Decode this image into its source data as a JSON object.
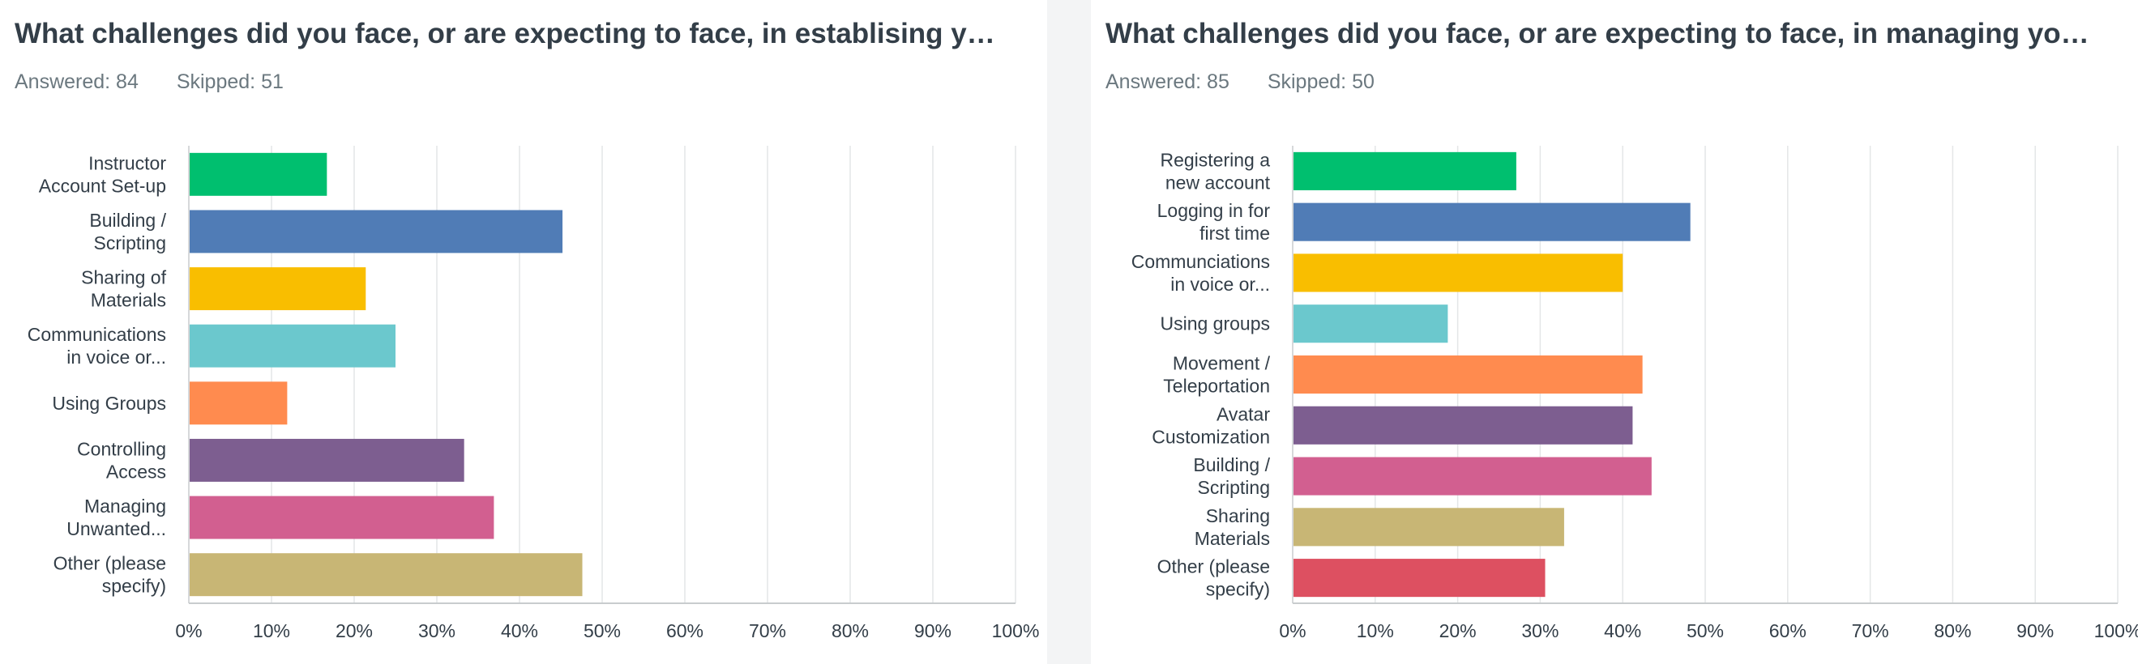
{
  "colors": [
    "#00bf6f",
    "#507cb6",
    "#f9be00",
    "#6bc8cd",
    "#ff8b4f",
    "#7d5e90",
    "#d25f90",
    "#c8b675",
    "#dd5061"
  ],
  "panels": [
    {
      "title": "What challenges did you face, or are expecting to face, in establising y…",
      "answered": "Answered: 84",
      "skipped": "Skipped: 51"
    },
    {
      "title": "What challenges did you face, or are expecting to face, in managing yo…",
      "answered": "Answered: 85",
      "skipped": "Skipped: 50"
    }
  ],
  "chart_data": [
    {
      "type": "bar",
      "orientation": "horizontal",
      "categories": [
        [
          "Instructor",
          "Account Set-up"
        ],
        [
          "Building /",
          "Scripting"
        ],
        [
          "Sharing of",
          "Materials"
        ],
        [
          "Communications",
          "in voice or..."
        ],
        [
          "Using Groups"
        ],
        [
          "Controlling",
          "Access"
        ],
        [
          "Managing",
          "Unwanted..."
        ],
        [
          "Other (please",
          "specify)"
        ]
      ],
      "values": [
        16.7,
        45.2,
        21.4,
        25.0,
        11.9,
        33.3,
        36.9,
        47.6
      ],
      "xlim": [
        0,
        100
      ],
      "xticks": [
        "0%",
        "10%",
        "20%",
        "30%",
        "40%",
        "50%",
        "60%",
        "70%",
        "80%",
        "90%",
        "100%"
      ],
      "grid": true
    },
    {
      "type": "bar",
      "orientation": "horizontal",
      "categories": [
        [
          "Registering a",
          "new account"
        ],
        [
          "Logging in for",
          "first time"
        ],
        [
          "Communciations",
          "in voice or..."
        ],
        [
          "Using groups"
        ],
        [
          "Movement /",
          "Teleportation"
        ],
        [
          "Avatar",
          "Customization"
        ],
        [
          "Building /",
          "Scripting"
        ],
        [
          "Sharing",
          "Materials"
        ],
        [
          "Other (please",
          "specify)"
        ]
      ],
      "values": [
        27.1,
        48.2,
        40.0,
        18.8,
        42.4,
        41.2,
        43.5,
        32.9,
        30.6
      ],
      "xlim": [
        0,
        100
      ],
      "xticks": [
        "0%",
        "10%",
        "20%",
        "30%",
        "40%",
        "50%",
        "60%",
        "70%",
        "80%",
        "90%",
        "100%"
      ],
      "grid": true
    }
  ]
}
